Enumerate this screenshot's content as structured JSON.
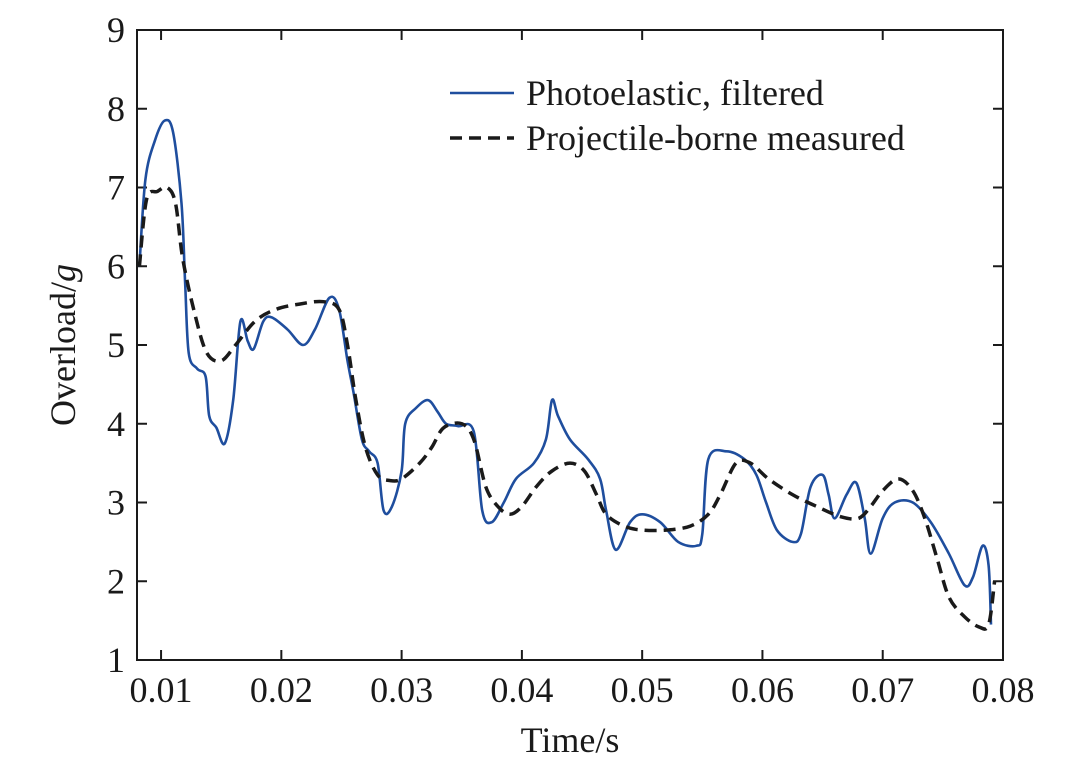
{
  "chart_data": {
    "type": "line",
    "title": "",
    "xlabel": "Time/s",
    "ylabel": {
      "main": "Overload/",
      "unit": "g"
    },
    "xlim": [
      0.008,
      0.08
    ],
    "ylim": [
      1,
      9
    ],
    "xticks": [
      0.01,
      0.02,
      0.03,
      0.04,
      0.05,
      0.06,
      0.07,
      0.08
    ],
    "xtick_labels": [
      "0.01",
      "0.02",
      "0.03",
      "0.04",
      "0.05",
      "0.06",
      "0.07",
      "0.08"
    ],
    "yticks": [
      1,
      2,
      3,
      4,
      5,
      6,
      7,
      8,
      9
    ],
    "ytick_labels": [
      "1",
      "2",
      "3",
      "4",
      "5",
      "6",
      "7",
      "8",
      "9"
    ],
    "grid": false,
    "legend_position": "top-right",
    "series": [
      {
        "name": "Photoelastic, filtered",
        "color": "#1f4e9e",
        "style": "solid",
        "points": [
          [
            0.0082,
            6.0
          ],
          [
            0.0087,
            7.1
          ],
          [
            0.0095,
            7.6
          ],
          [
            0.0103,
            7.85
          ],
          [
            0.011,
            7.7
          ],
          [
            0.0117,
            6.8
          ],
          [
            0.012,
            5.8
          ],
          [
            0.0123,
            4.9
          ],
          [
            0.013,
            4.7
          ],
          [
            0.0137,
            4.6
          ],
          [
            0.014,
            4.1
          ],
          [
            0.0146,
            3.95
          ],
          [
            0.0153,
            3.75
          ],
          [
            0.016,
            4.3
          ],
          [
            0.0166,
            5.3
          ],
          [
            0.0172,
            5.05
          ],
          [
            0.0177,
            4.95
          ],
          [
            0.0185,
            5.3
          ],
          [
            0.0192,
            5.35
          ],
          [
            0.0205,
            5.2
          ],
          [
            0.0218,
            5.0
          ],
          [
            0.0228,
            5.2
          ],
          [
            0.024,
            5.6
          ],
          [
            0.0248,
            5.45
          ],
          [
            0.0255,
            4.8
          ],
          [
            0.026,
            4.4
          ],
          [
            0.0267,
            3.8
          ],
          [
            0.0273,
            3.65
          ],
          [
            0.028,
            3.5
          ],
          [
            0.0285,
            2.9
          ],
          [
            0.0292,
            2.95
          ],
          [
            0.03,
            3.4
          ],
          [
            0.0303,
            4.0
          ],
          [
            0.0312,
            4.2
          ],
          [
            0.0322,
            4.3
          ],
          [
            0.033,
            4.15
          ],
          [
            0.0337,
            4.0
          ],
          [
            0.0347,
            3.97
          ],
          [
            0.036,
            3.9
          ],
          [
            0.0367,
            2.9
          ],
          [
            0.0375,
            2.75
          ],
          [
            0.0385,
            3.0
          ],
          [
            0.0395,
            3.3
          ],
          [
            0.041,
            3.5
          ],
          [
            0.042,
            3.8
          ],
          [
            0.0425,
            4.3
          ],
          [
            0.043,
            4.1
          ],
          [
            0.044,
            3.8
          ],
          [
            0.0455,
            3.55
          ],
          [
            0.0465,
            3.3
          ],
          [
            0.047,
            2.9
          ],
          [
            0.0478,
            2.4
          ],
          [
            0.049,
            2.75
          ],
          [
            0.05,
            2.85
          ],
          [
            0.0515,
            2.75
          ],
          [
            0.053,
            2.5
          ],
          [
            0.0545,
            2.45
          ],
          [
            0.055,
            2.6
          ],
          [
            0.0555,
            3.55
          ],
          [
            0.057,
            3.65
          ],
          [
            0.0585,
            3.55
          ],
          [
            0.0595,
            3.35
          ],
          [
            0.0603,
            3.0
          ],
          [
            0.0612,
            2.65
          ],
          [
            0.0625,
            2.5
          ],
          [
            0.0632,
            2.6
          ],
          [
            0.064,
            3.2
          ],
          [
            0.065,
            3.35
          ],
          [
            0.0655,
            3.1
          ],
          [
            0.066,
            2.8
          ],
          [
            0.067,
            3.1
          ],
          [
            0.0678,
            3.25
          ],
          [
            0.0685,
            2.8
          ],
          [
            0.069,
            2.35
          ],
          [
            0.07,
            2.8
          ],
          [
            0.071,
            3.0
          ],
          [
            0.0725,
            3.0
          ],
          [
            0.074,
            2.75
          ],
          [
            0.0755,
            2.35
          ],
          [
            0.0768,
            1.95
          ],
          [
            0.0775,
            2.05
          ],
          [
            0.0783,
            2.45
          ],
          [
            0.0788,
            2.2
          ],
          [
            0.079,
            1.45
          ]
        ]
      },
      {
        "name": "Projectile-borne measured",
        "color": "#1a1a1a",
        "style": "dashed",
        "points": [
          [
            0.0082,
            6.0
          ],
          [
            0.0088,
            6.85
          ],
          [
            0.0097,
            6.95
          ],
          [
            0.0105,
            7.0
          ],
          [
            0.0112,
            6.8
          ],
          [
            0.0118,
            6.1
          ],
          [
            0.0128,
            5.4
          ],
          [
            0.0138,
            4.9
          ],
          [
            0.015,
            4.8
          ],
          [
            0.0162,
            5.0
          ],
          [
            0.0178,
            5.3
          ],
          [
            0.0195,
            5.45
          ],
          [
            0.0215,
            5.52
          ],
          [
            0.0235,
            5.55
          ],
          [
            0.0248,
            5.45
          ],
          [
            0.0255,
            5.0
          ],
          [
            0.0262,
            4.3
          ],
          [
            0.027,
            3.7
          ],
          [
            0.028,
            3.35
          ],
          [
            0.029,
            3.28
          ],
          [
            0.03,
            3.3
          ],
          [
            0.0315,
            3.5
          ],
          [
            0.0325,
            3.7
          ],
          [
            0.0335,
            3.95
          ],
          [
            0.035,
            4.0
          ],
          [
            0.036,
            3.8
          ],
          [
            0.037,
            3.2
          ],
          [
            0.038,
            2.95
          ],
          [
            0.039,
            2.85
          ],
          [
            0.04,
            2.95
          ],
          [
            0.0412,
            3.2
          ],
          [
            0.0425,
            3.4
          ],
          [
            0.044,
            3.5
          ],
          [
            0.0452,
            3.4
          ],
          [
            0.0462,
            3.1
          ],
          [
            0.047,
            2.85
          ],
          [
            0.0485,
            2.7
          ],
          [
            0.05,
            2.65
          ],
          [
            0.052,
            2.65
          ],
          [
            0.054,
            2.7
          ],
          [
            0.0555,
            2.85
          ],
          [
            0.0565,
            3.1
          ],
          [
            0.0578,
            3.5
          ],
          [
            0.059,
            3.5
          ],
          [
            0.0605,
            3.3
          ],
          [
            0.0625,
            3.1
          ],
          [
            0.0645,
            2.95
          ],
          [
            0.0665,
            2.82
          ],
          [
            0.068,
            2.8
          ],
          [
            0.069,
            2.95
          ],
          [
            0.07,
            3.15
          ],
          [
            0.0713,
            3.3
          ],
          [
            0.0725,
            3.15
          ],
          [
            0.0735,
            2.8
          ],
          [
            0.0745,
            2.3
          ],
          [
            0.0755,
            1.8
          ],
          [
            0.0768,
            1.55
          ],
          [
            0.078,
            1.42
          ],
          [
            0.0788,
            1.45
          ],
          [
            0.0793,
            2.0
          ]
        ]
      }
    ]
  }
}
